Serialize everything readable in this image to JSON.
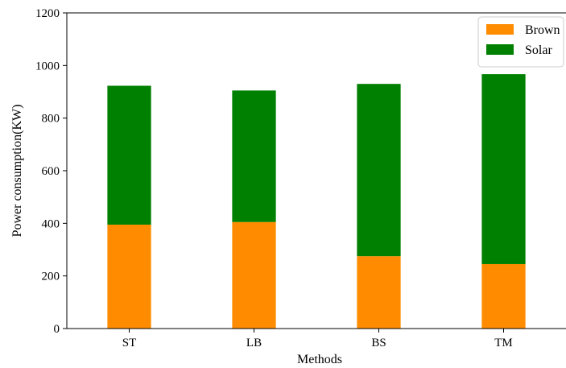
{
  "chart_data": {
    "type": "bar",
    "stacked": true,
    "categories": [
      "ST",
      "LB",
      "BS",
      "TM"
    ],
    "series": [
      {
        "name": "Brown",
        "values": [
          395,
          405,
          275,
          245
        ],
        "color": "#FF8C00"
      },
      {
        "name": "Solar",
        "values": [
          528,
          500,
          655,
          722
        ],
        "color": "#008000"
      }
    ],
    "xlabel": "Methods",
    "ylabel": "Power consumption(KW)",
    "ylim": [
      0,
      1200
    ],
    "yticks": [
      0,
      200,
      400,
      600,
      800,
      1000,
      1200
    ],
    "grid": false,
    "legend_position": "top-right"
  }
}
